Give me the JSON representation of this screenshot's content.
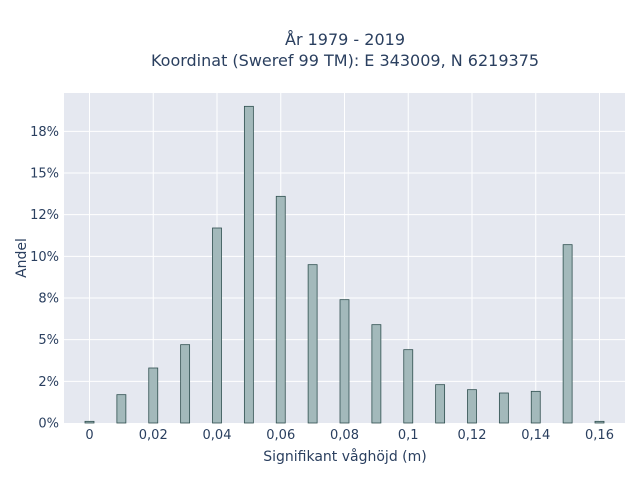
{
  "chart_data": {
    "type": "bar",
    "title_line1": "År 1979 - 2019",
    "title_line2": "Koordinat (Sweref 99 TM): E 343009, N 6219375",
    "xlabel": "Signifikant våghöjd (m)",
    "ylabel": "Andel",
    "x": [
      0,
      0.01,
      0.02,
      0.03,
      0.04,
      0.05,
      0.06,
      0.07,
      0.08,
      0.09,
      0.1,
      0.11,
      0.12,
      0.13,
      0.14,
      0.15,
      0.16
    ],
    "values": [
      0.1,
      1.7,
      3.3,
      4.7,
      11.7,
      19.0,
      13.6,
      9.5,
      7.4,
      5.9,
      4.4,
      2.3,
      2.0,
      1.8,
      1.9,
      10.7,
      0.1
    ],
    "xlim": [
      -0.008,
      0.168
    ],
    "ylim": [
      0,
      19.8
    ],
    "x_ticks": [
      0,
      0.02,
      0.04,
      0.06,
      0.08,
      0.1,
      0.12,
      0.14,
      0.16
    ],
    "x_tick_labels": [
      "0",
      "0,02",
      "0,04",
      "0,06",
      "0,08",
      "0,1",
      "0,12",
      "0,14",
      "0,16"
    ],
    "y_ticks": [
      0,
      2.5,
      5,
      7.5,
      10,
      12.5,
      15,
      17.5
    ],
    "y_tick_labels": [
      "0%",
      "2%",
      "5%",
      "8%",
      "10%",
      "12%",
      "15%",
      "18%"
    ],
    "grid": true,
    "colors": {
      "bar_fill": "#a3b9bb",
      "bar_stroke": "#2f4f4f",
      "plot_bg": "#e5e8f0",
      "grid": "#ffffff",
      "text": "#2a3f5f"
    }
  }
}
